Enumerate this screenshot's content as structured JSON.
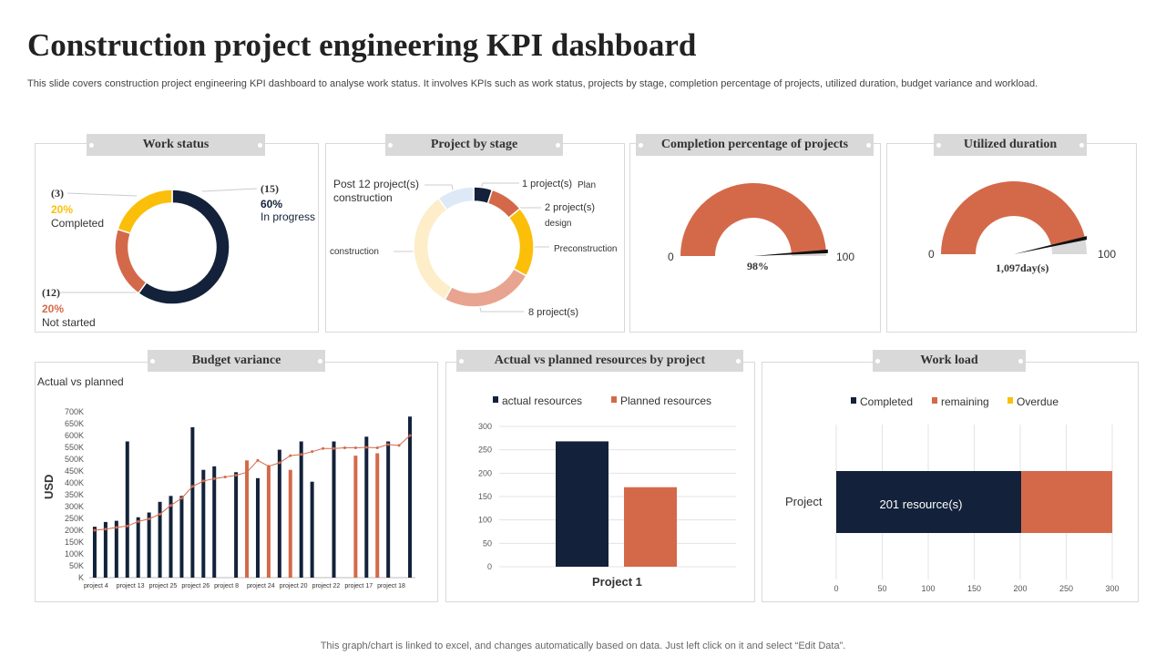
{
  "title": "Construction project engineering KPI dashboard",
  "subtitle": "This slide covers construction project engineering KPI dashboard to analyse work status. It involves KPIs such as work status, projects by stage, completion percentage of projects, utilized duration, budget variance and workload.",
  "footer": "This graph/chart is linked to excel,  and changes automatically based on data. Just left click on it and select “Edit Data”.",
  "colors": {
    "dark": "#13223a",
    "orange": "#d4694a",
    "yellow": "#fbbf0a",
    "salmon": "#e8a490",
    "cream": "#fdedc9",
    "lightblue": "#dde9f6",
    "grey": "#d9d9d9"
  },
  "panels": {
    "work_status": "Work status",
    "project_stage": "Project by stage",
    "completion": "Completion percentage of projects",
    "utilized": "Utilized duration",
    "budget": "Budget variance",
    "resources": "Actual vs planned resources by project",
    "workload": "Work load"
  },
  "chart_data": [
    {
      "type": "pie",
      "title": "Work status",
      "slices": [
        {
          "name": "In progress",
          "count": "(15)",
          "percent": "60%",
          "value": 60,
          "color": "#13223a"
        },
        {
          "name": "Not started",
          "count": "(12)",
          "percent": "20%",
          "value": 20,
          "color": "#d4694a"
        },
        {
          "name": "Completed",
          "count": "(3)",
          "percent": "20%",
          "value": 20,
          "color": "#fbbf0a"
        }
      ]
    },
    {
      "type": "pie",
      "title": "Project by stage",
      "slices": [
        {
          "name": "Plan",
          "label": "1 project(s)",
          "value": 5,
          "color": "#13223a"
        },
        {
          "name": "design",
          "label": "2 project(s)",
          "value": 9,
          "color": "#d4694a"
        },
        {
          "name": "Preconstruction",
          "label": "",
          "value": 19,
          "color": "#fbbf0a"
        },
        {
          "name": "",
          "label": "8 project(s)",
          "value": 25,
          "color": "#e8a490"
        },
        {
          "name": "construction",
          "label": "",
          "value": 32,
          "color": "#fdedc9"
        },
        {
          "name": "construction",
          "label": "Post 12 project(s)",
          "value": 10,
          "color": "#dde9f6"
        }
      ]
    },
    {
      "type": "gauge",
      "title": "Completion percentage of projects",
      "min": "0",
      "max": "100",
      "value": 98,
      "label": "98%"
    },
    {
      "type": "gauge",
      "title": "Utilized duration",
      "min": "0",
      "max": "100",
      "value": 93,
      "label": "1,097day(s)"
    },
    {
      "type": "bar",
      "title": "Budget variance",
      "legend_text": "Actual vs  planned",
      "ylabel": "USD",
      "ylim": [
        0,
        700000
      ],
      "yticks": [
        "K",
        "50K",
        "100K",
        "150K",
        "200K",
        "250K",
        "300K",
        "350K",
        "400K",
        "450K",
        "500K",
        "550K",
        "600K",
        "650K",
        "700K"
      ],
      "xtick_labels": [
        "project 4",
        "project 13",
        "project 25",
        "project 26",
        "project 8",
        "project 24",
        "project 20",
        "project 22",
        "project 17",
        "project 18"
      ],
      "actual": [
        215000,
        235000,
        240000,
        575000,
        255000,
        275000,
        320000,
        345000,
        345000,
        635000,
        455000,
        470000,
        null,
        445000,
        495000,
        420000,
        470000,
        540000,
        455000,
        575000,
        405000,
        null,
        575000,
        null,
        515000,
        595000,
        525000,
        575000,
        null,
        680000
      ],
      "over_budget": [
        false,
        false,
        false,
        false,
        false,
        false,
        false,
        false,
        false,
        false,
        false,
        false,
        false,
        false,
        true,
        false,
        true,
        false,
        true,
        false,
        false,
        false,
        false,
        false,
        true,
        false,
        true,
        false,
        false,
        false
      ],
      "planned": [
        200000,
        205000,
        212000,
        218000,
        237000,
        248000,
        268000,
        305000,
        335000,
        385000,
        408000,
        418000,
        425000,
        432000,
        445000,
        495000,
        470000,
        485000,
        515000,
        520000,
        532000,
        545000,
        545000,
        548000,
        548000,
        550000,
        548000,
        562000,
        558000,
        600000
      ]
    },
    {
      "type": "bar",
      "title": "Actual vs planned resources by project",
      "categories": [
        "Project 1"
      ],
      "ylim": [
        0,
        300
      ],
      "yticks": [
        "0",
        "50",
        "100",
        "150",
        "200",
        "250",
        "300"
      ],
      "series": [
        {
          "name": "actual resources",
          "values": [
            268
          ],
          "color": "#13223a"
        },
        {
          "name": "Planned resources",
          "values": [
            170
          ],
          "color": "#d4694a"
        }
      ]
    },
    {
      "type": "bar",
      "orientation": "horizontal",
      "title": "Work load",
      "categories": [
        "Project"
      ],
      "xlim": [
        0,
        300
      ],
      "xticks": [
        "0",
        "50",
        "100",
        "150",
        "200",
        "250",
        "300"
      ],
      "series": [
        {
          "name": "Completed",
          "values": [
            201
          ],
          "color": "#13223a"
        },
        {
          "name": "remaining",
          "values": [
            99
          ],
          "color": "#d4694a"
        },
        {
          "name": "Overdue",
          "values": [
            0
          ],
          "color": "#fbbf0a"
        }
      ],
      "data_label": "201 resource(s)"
    }
  ]
}
